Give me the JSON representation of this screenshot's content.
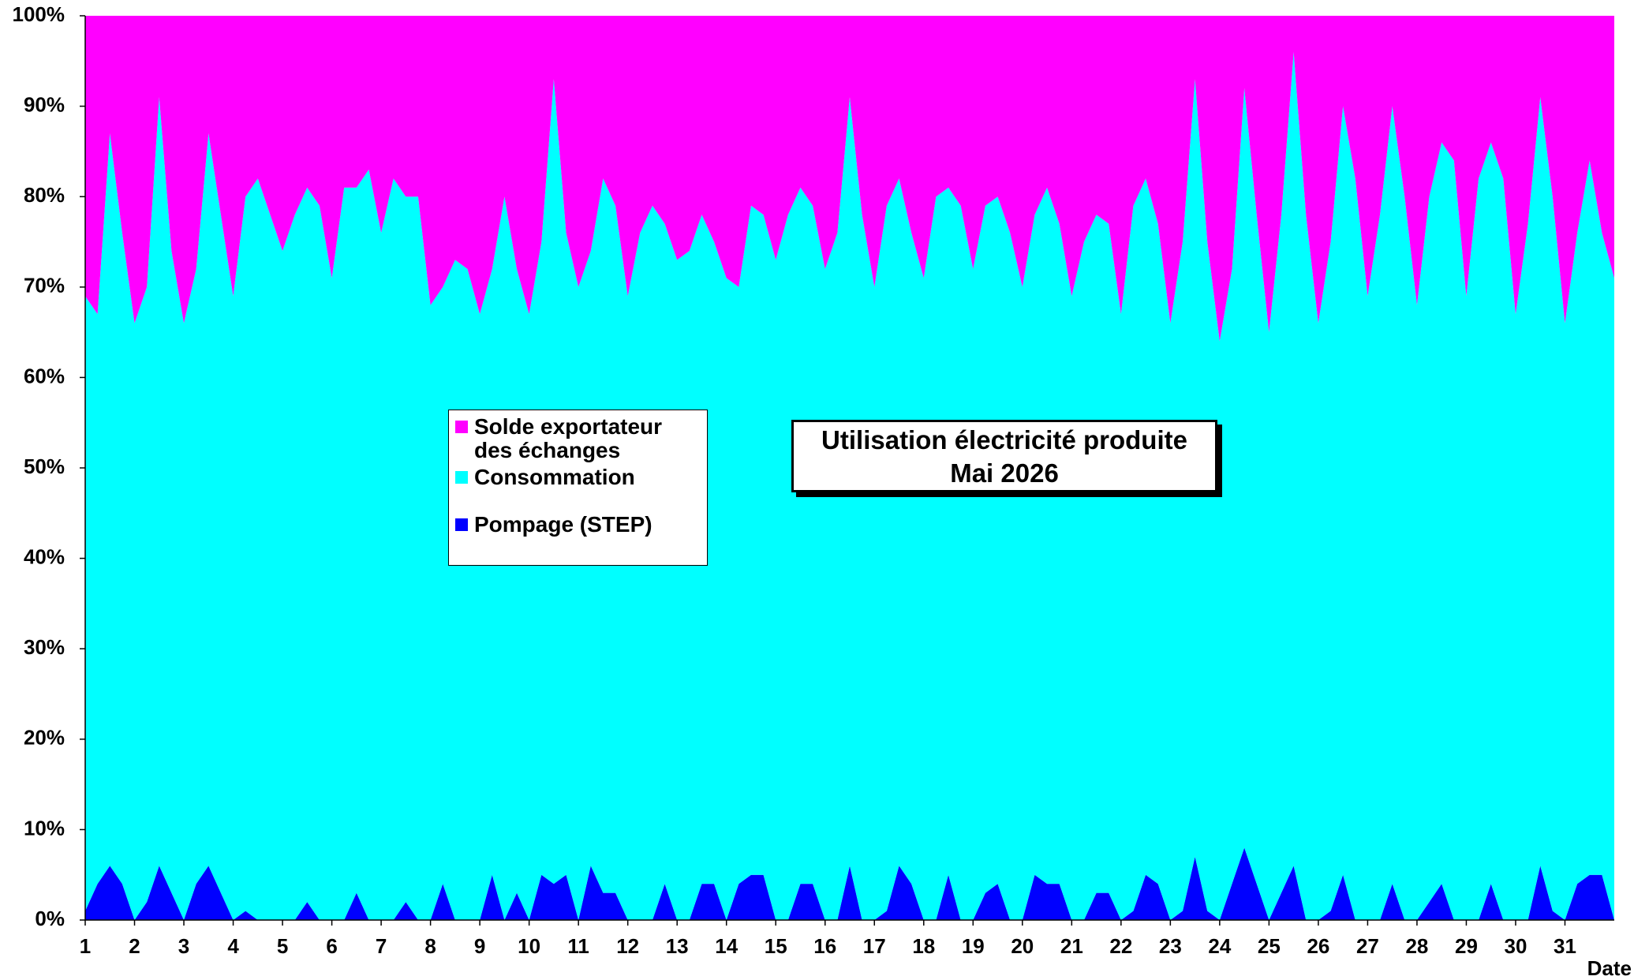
{
  "chart_data": {
    "type": "stacked-area",
    "title": "Utilisation électricité produite",
    "subtitle": "Mai 2026",
    "xlabel": "Date",
    "xlim": [
      1,
      32
    ],
    "xticks": [
      1,
      2,
      3,
      4,
      5,
      6,
      7,
      8,
      9,
      10,
      11,
      12,
      13,
      14,
      15,
      16,
      17,
      18,
      19,
      20,
      21,
      22,
      23,
      24,
      25,
      26,
      27,
      28,
      29,
      30,
      31
    ],
    "ylim": [
      0,
      100
    ],
    "yticks": [
      {
        "value": 0,
        "label": "0%"
      },
      {
        "value": 10,
        "label": "10%"
      },
      {
        "value": 20,
        "label": "20%"
      },
      {
        "value": 30,
        "label": "30%"
      },
      {
        "value": 40,
        "label": "40%"
      },
      {
        "value": 50,
        "label": "50%"
      },
      {
        "value": 60,
        "label": "60%"
      },
      {
        "value": 70,
        "label": "70%"
      },
      {
        "value": 80,
        "label": "80%"
      },
      {
        "value": 90,
        "label": "90%"
      },
      {
        "value": 100,
        "label": "100%"
      }
    ],
    "x": [
      1,
      1.25,
      1.5,
      1.75,
      2,
      2.25,
      2.5,
      2.75,
      3,
      3.25,
      3.5,
      3.75,
      4,
      4.25,
      4.5,
      4.75,
      5,
      5.25,
      5.5,
      5.75,
      6,
      6.25,
      6.5,
      6.75,
      7,
      7.25,
      7.5,
      7.75,
      8,
      8.25,
      8.5,
      8.75,
      9,
      9.25,
      9.5,
      9.75,
      10,
      10.25,
      10.5,
      10.75,
      11,
      11.25,
      11.5,
      11.75,
      12,
      12.25,
      12.5,
      12.75,
      13,
      13.25,
      13.5,
      13.75,
      14,
      14.25,
      14.5,
      14.75,
      15,
      15.25,
      15.5,
      15.75,
      16,
      16.25,
      16.5,
      16.75,
      17,
      17.25,
      17.5,
      17.75,
      18,
      18.25,
      18.5,
      18.75,
      19,
      19.25,
      19.5,
      19.75,
      20,
      20.25,
      20.5,
      20.75,
      21,
      21.25,
      21.5,
      21.75,
      22,
      22.25,
      22.5,
      22.75,
      23,
      23.25,
      23.5,
      23.75,
      24,
      24.25,
      24.5,
      24.75,
      25,
      25.25,
      25.5,
      25.75,
      26,
      26.25,
      26.5,
      26.75,
      27,
      27.25,
      27.5,
      27.75,
      28,
      28.25,
      28.5,
      28.75,
      29,
      29.25,
      29.5,
      29.75,
      30,
      30.25,
      30.5,
      30.75,
      31,
      31.25,
      31.5,
      31.75,
      32
    ],
    "series": [
      {
        "name": "Solde exportateur des échanges",
        "color": "#ff00ff",
        "values": [
          31,
          33,
          13,
          24,
          34,
          30,
          9,
          26,
          34,
          28,
          13,
          22,
          31,
          20,
          18,
          22,
          26,
          22,
          19,
          21,
          29,
          19,
          19,
          17,
          24,
          18,
          20,
          20,
          32,
          30,
          27,
          28,
          33,
          28,
          20,
          28,
          33,
          25,
          7,
          24,
          30,
          26,
          18,
          21,
          31,
          24,
          21,
          23,
          27,
          26,
          22,
          25,
          29,
          30,
          21,
          22,
          27,
          22,
          19,
          21,
          28,
          24,
          9,
          22,
          30,
          21,
          18,
          24,
          29,
          20,
          19,
          21,
          28,
          21,
          20,
          24,
          30,
          22,
          19,
          23,
          31,
          25,
          22,
          23,
          33,
          21,
          18,
          23,
          34,
          25,
          7,
          25,
          36,
          28,
          8,
          22,
          35,
          22,
          4,
          22,
          34,
          25,
          10,
          18,
          31,
          22,
          10,
          20,
          32,
          20,
          14,
          16,
          31,
          18,
          14,
          18,
          33,
          23,
          9,
          20,
          34,
          24,
          16,
          24,
          29
        ]
      },
      {
        "name": "Consommation",
        "color": "#00ffff",
        "values": [
          68,
          63,
          81,
          72,
          66,
          68,
          85,
          71,
          66,
          68,
          81,
          75,
          69,
          79,
          82,
          78,
          74,
          78,
          79,
          79,
          71,
          81,
          78,
          83,
          76,
          82,
          78,
          80,
          68,
          66,
          73,
          72,
          67,
          67,
          80,
          69,
          67,
          70,
          89,
          71,
          70,
          68,
          79,
          76,
          69,
          76,
          79,
          73,
          73,
          74,
          74,
          71,
          71,
          66,
          74,
          73,
          73,
          78,
          77,
          75,
          72,
          76,
          85,
          78,
          70,
          78,
          76,
          72,
          71,
          80,
          76,
          79,
          72,
          76,
          76,
          76,
          70,
          73,
          77,
          73,
          69,
          75,
          75,
          74,
          67,
          78,
          77,
          73,
          66,
          74,
          86,
          74,
          64,
          68,
          84,
          74,
          65,
          75,
          90,
          78,
          66,
          74,
          85,
          82,
          69,
          78,
          86,
          80,
          68,
          78,
          82,
          84,
          69,
          82,
          82,
          82,
          67,
          77,
          85,
          79,
          66,
          72,
          79,
          71,
          71
        ]
      },
      {
        "name": "Pompage (STEP)",
        "color": "#0000ff",
        "values": [
          1,
          4,
          6,
          4,
          0,
          2,
          6,
          3,
          0,
          4,
          6,
          3,
          0,
          1,
          0,
          0,
          0,
          0,
          2,
          0,
          0,
          0,
          3,
          0,
          0,
          0,
          2,
          0,
          0,
          4,
          0,
          0,
          0,
          5,
          0,
          3,
          0,
          5,
          4,
          5,
          0,
          6,
          3,
          3,
          0,
          0,
          0,
          4,
          0,
          0,
          4,
          4,
          0,
          4,
          5,
          5,
          0,
          0,
          4,
          4,
          0,
          0,
          6,
          0,
          0,
          1,
          6,
          4,
          0,
          0,
          5,
          0,
          0,
          3,
          4,
          0,
          0,
          5,
          4,
          4,
          0,
          0,
          3,
          3,
          0,
          1,
          5,
          4,
          0,
          1,
          7,
          1,
          0,
          4,
          8,
          4,
          0,
          3,
          6,
          0,
          0,
          1,
          5,
          0,
          0,
          0,
          4,
          0,
          0,
          2,
          4,
          0,
          0,
          0,
          4,
          0,
          0,
          0,
          6,
          1,
          0,
          4,
          5,
          5,
          0
        ]
      }
    ]
  }
}
